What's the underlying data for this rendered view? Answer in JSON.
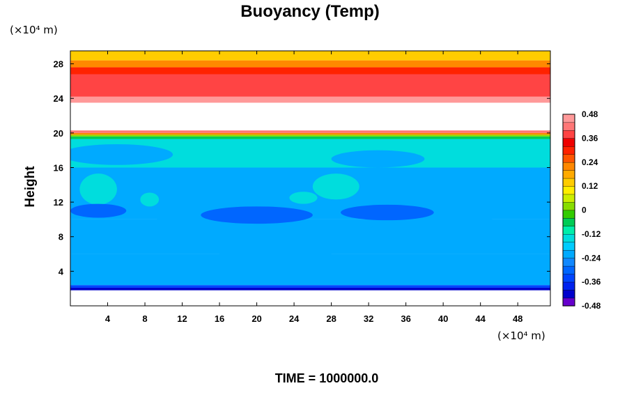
{
  "chart_data": {
    "type": "heatmap",
    "title": "Buoyancy (Temp)",
    "ylabel": "Height",
    "x_unit": "(×10⁴ m)",
    "y_unit": "(×10⁴ m)",
    "footer": "TIME = 1000000.0",
    "xlim": [
      0,
      51.5
    ],
    "ylim": [
      0,
      29.5
    ],
    "x_ticks": [
      4,
      8,
      12,
      16,
      20,
      24,
      28,
      32,
      36,
      40,
      44,
      48
    ],
    "y_ticks": [
      4,
      8,
      12,
      16,
      20,
      24,
      28
    ],
    "colorbar": {
      "range": [
        -0.48,
        0.48
      ],
      "tick_values": [
        0.48,
        0.36,
        0.24,
        0.12,
        0,
        -0.12,
        -0.24,
        -0.36,
        -0.48
      ],
      "tick_labels": [
        "0.48",
        "0.36",
        "0.24",
        "0.12",
        "0",
        "-0.12",
        "-0.24",
        "-0.36",
        "-0.48"
      ],
      "colors": [
        "#6600cc",
        "#0000cc",
        "#0022ee",
        "#0044ff",
        "#0066ff",
        "#1188ff",
        "#00aaff",
        "#00ccff",
        "#00dddd",
        "#00eeaa",
        "#00cc55",
        "#33cc00",
        "#88dd00",
        "#ccee00",
        "#ffee00",
        "#ffcc00",
        "#ffaa00",
        "#ff8800",
        "#ff5500",
        "#ff2200",
        "#ee0000",
        "#ff4444",
        "#ff7777",
        "#ff9999"
      ]
    },
    "bands": [
      {
        "from": 0,
        "to": 1.8,
        "value": null
      },
      {
        "from": 1.8,
        "to": 2.1,
        "value": -0.42
      },
      {
        "from": 2.1,
        "to": 2.4,
        "value": -0.34
      },
      {
        "from": 2.4,
        "to": 6.0,
        "value": -0.24
      },
      {
        "from": 6.0,
        "to": 10.0,
        "value": -0.2
      },
      {
        "from": 10.0,
        "to": 16.0,
        "value": -0.24
      },
      {
        "from": 16.0,
        "to": 19.3,
        "value": -0.16
      },
      {
        "from": 19.3,
        "to": 19.6,
        "value": -0.08
      },
      {
        "from": 19.6,
        "to": 19.8,
        "value": 0.02
      },
      {
        "from": 19.8,
        "to": 20.0,
        "value": 0.22
      },
      {
        "from": 20.0,
        "to": 20.3,
        "value": 0.4
      },
      {
        "from": 20.3,
        "to": 23.5,
        "value": null
      },
      {
        "from": 23.5,
        "to": 24.2,
        "value": 0.44
      },
      {
        "from": 24.2,
        "to": 26.8,
        "value": 0.38
      },
      {
        "from": 26.8,
        "to": 27.6,
        "value": 0.3
      },
      {
        "from": 27.6,
        "to": 28.4,
        "value": 0.22
      },
      {
        "from": 28.4,
        "to": 29.5,
        "value": 0.14
      }
    ],
    "patches": [
      {
        "x": 3,
        "y": 13.5,
        "rx": 2.0,
        "ry": 1.8,
        "value": -0.14
      },
      {
        "x": 8.5,
        "y": 12.3,
        "rx": 1.0,
        "ry": 0.8,
        "value": -0.14
      },
      {
        "x": 28.5,
        "y": 13.8,
        "rx": 2.5,
        "ry": 1.5,
        "value": -0.16
      },
      {
        "x": 25,
        "y": 12.5,
        "rx": 1.5,
        "ry": 0.7,
        "value": -0.16
      },
      {
        "x": 12,
        "y": 9.5,
        "rx": 3.0,
        "ry": 1.2,
        "value": -0.2
      },
      {
        "x": 22,
        "y": 6.0,
        "rx": 6.0,
        "ry": 2.0,
        "value": -0.2
      },
      {
        "x": 40,
        "y": 8.5,
        "rx": 8.0,
        "ry": 2.0,
        "value": -0.2
      },
      {
        "x": 5,
        "y": 17.5,
        "rx": 6.0,
        "ry": 1.2,
        "value": -0.24
      },
      {
        "x": 33,
        "y": 17.0,
        "rx": 5.0,
        "ry": 1.0,
        "value": -0.24
      },
      {
        "x": 17,
        "y": 14.5,
        "rx": 4.0,
        "ry": 1.0,
        "value": -0.2
      },
      {
        "x": 47,
        "y": 14.5,
        "rx": 4.0,
        "ry": 1.5,
        "value": -0.2
      },
      {
        "x": 20,
        "y": 10.5,
        "rx": 6.0,
        "ry": 1.0,
        "value": -0.28
      },
      {
        "x": 34,
        "y": 10.8,
        "rx": 5.0,
        "ry": 0.9,
        "value": -0.28
      },
      {
        "x": 3,
        "y": 11.0,
        "rx": 3.0,
        "ry": 0.8,
        "value": -0.28
      }
    ]
  }
}
